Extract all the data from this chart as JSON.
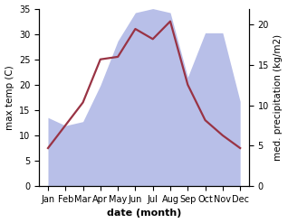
{
  "months": [
    "Jan",
    "Feb",
    "Mar",
    "Apr",
    "May",
    "Jun",
    "Jul",
    "Aug",
    "Sep",
    "Oct",
    "Nov",
    "Dec"
  ],
  "temperature": [
    7.5,
    12.0,
    16.5,
    25.0,
    25.5,
    31.0,
    29.0,
    32.5,
    20.0,
    13.0,
    10.0,
    7.5
  ],
  "precipitation": [
    8.5,
    7.5,
    8.0,
    12.5,
    18.0,
    21.5,
    22.0,
    21.5,
    13.5,
    19.0,
    19.0,
    10.5
  ],
  "temp_color": "#993344",
  "precip_fill_color": "#b8bfe8",
  "background_color": "#ffffff",
  "xlabel": "date (month)",
  "ylabel_left": "max temp (C)",
  "ylabel_right": "med. precipitation (kg/m2)",
  "ylim_left": [
    0,
    35
  ],
  "ylim_right": [
    0,
    22
  ],
  "yticks_left": [
    0,
    5,
    10,
    15,
    20,
    25,
    30,
    35
  ],
  "yticks_right": [
    0,
    5,
    10,
    15,
    20
  ],
  "temp_linewidth": 1.6,
  "label_fontsize": 7.5,
  "tick_fontsize": 7
}
